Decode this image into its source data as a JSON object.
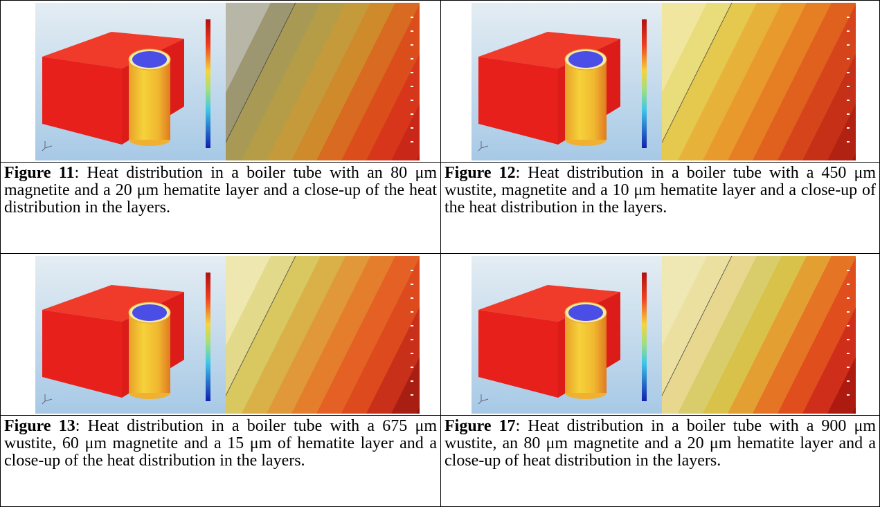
{
  "figures": [
    {
      "label": "Figure 11",
      "text": ": Heat distribution in a boiler tube with an 80 μm magnetite and a 20 μm hematite layer and a close-up of the heat distribution in the layers."
    },
    {
      "label": "Figure 12",
      "text": ": Heat distribution in a boiler tube with a 450 μm wustite, magnetite and a 10 μm hematite layer and a close-up of the heat distribution in the layers."
    },
    {
      "label": "Figure 13",
      "text": ": Heat distribution in a boiler tube with a 675 μm wustite, 60 μm magnetite and a 15 μm of hematite layer and a close-up of the heat distribution in the layers."
    },
    {
      "label": "Figure 17",
      "text": ": Heat distribution in a boiler tube with a 900 μm wustite, an 80 μm magnetite and a 20 μm hematite layer and a close-up of heat distribution in the layers."
    }
  ]
}
